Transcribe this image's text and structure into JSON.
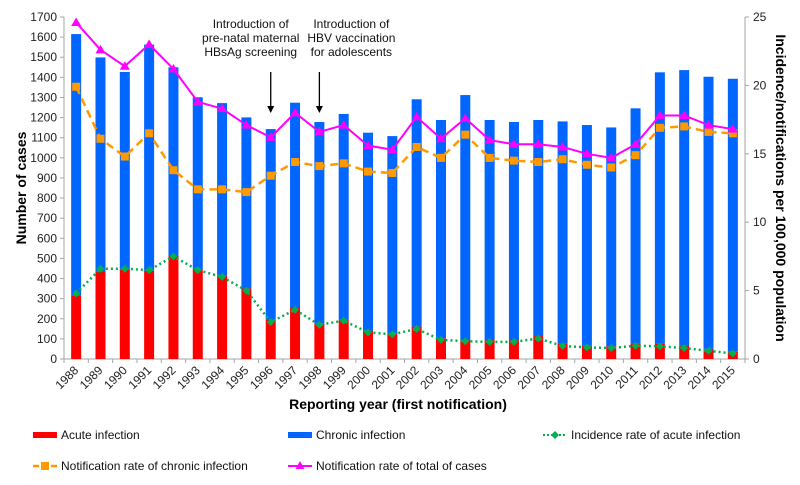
{
  "chart_data": {
    "type": "bar",
    "title": "",
    "xlabel": "Reporting year (first notification)",
    "ylabel": "Number of cases",
    "y2label": "Incidence/notifications per 100,000 population",
    "ylim": [
      0,
      1700
    ],
    "y2lim": [
      0,
      25
    ],
    "yticks": [
      0,
      100,
      200,
      300,
      400,
      500,
      600,
      700,
      800,
      900,
      1000,
      1100,
      1200,
      1300,
      1400,
      1500,
      1600,
      1700
    ],
    "y2ticks": [
      0,
      5,
      10,
      15,
      20,
      25
    ],
    "grid": false,
    "legend_position": "bottom",
    "categories": [
      "1988",
      "1989",
      "1990",
      "1991",
      "1992",
      "1993",
      "1994",
      "1995",
      "1996",
      "1997",
      "1998",
      "1999",
      "2000",
      "2001",
      "2002",
      "2003",
      "2004",
      "2005",
      "2006",
      "2007",
      "2008",
      "2009",
      "2010",
      "2011",
      "2012",
      "2013",
      "2014",
      "2015"
    ],
    "series": [
      {
        "name": "Acute infection",
        "kind": "stacked-bar",
        "axis": "left",
        "color": "#ff0000",
        "values": [
          315,
          437,
          446,
          439,
          512,
          447,
          416,
          351,
          194,
          256,
          177,
          197,
          141,
          128,
          161,
          103,
          94,
          94,
          94,
          114,
          75,
          66,
          63,
          75,
          75,
          68,
          51,
          36
        ]
      },
      {
        "name": "Chronic infection",
        "kind": "stacked-bar",
        "axis": "left",
        "color": "#0066ff",
        "values": [
          1300,
          1062,
          981,
          1124,
          938,
          854,
          856,
          850,
          949,
          1018,
          1001,
          1021,
          984,
          980,
          1130,
          1085,
          1218,
          1094,
          1084,
          1074,
          1106,
          1097,
          1088,
          1171,
          1350,
          1368,
          1352,
          1357
        ]
      },
      {
        "name": "Incidence rate of acute infection",
        "kind": "line-dotted",
        "axis": "right",
        "color": "#00b050",
        "marker": "diamond",
        "values": [
          4.8,
          6.6,
          6.6,
          6.5,
          7.5,
          6.5,
          6.0,
          5.0,
          2.7,
          3.6,
          2.5,
          2.8,
          1.95,
          1.8,
          2.2,
          1.4,
          1.3,
          1.25,
          1.25,
          1.5,
          0.95,
          0.85,
          0.8,
          0.97,
          0.93,
          0.8,
          0.6,
          0.4
        ]
      },
      {
        "name": "Notification rate of chronic infection",
        "kind": "line-dashed",
        "axis": "right",
        "color": "#ff9900",
        "marker": "square",
        "values": [
          19.9,
          16.1,
          14.8,
          16.5,
          13.8,
          12.4,
          12.4,
          12.2,
          13.4,
          14.4,
          14.1,
          14.3,
          13.7,
          13.6,
          15.5,
          14.7,
          16.4,
          14.7,
          14.5,
          14.4,
          14.6,
          14.2,
          14.0,
          14.9,
          16.9,
          17.0,
          16.6,
          16.5
        ]
      },
      {
        "name": "Notification rate of total of cases",
        "kind": "line-solid",
        "axis": "right",
        "color": "#ff00ff",
        "marker": "triangle",
        "values": [
          24.6,
          22.6,
          21.4,
          23.0,
          21.2,
          18.8,
          18.3,
          17.1,
          16.2,
          18.0,
          16.6,
          17.1,
          15.6,
          15.3,
          17.7,
          16.1,
          17.6,
          16.0,
          15.7,
          15.7,
          15.5,
          15.0,
          14.7,
          15.7,
          17.8,
          17.8,
          17.1,
          16.8
        ]
      }
    ],
    "annotations": [
      {
        "at": "1996",
        "lines": [
          "Introduction of",
          "pre-natal maternal",
          "HBsAg screening"
        ]
      },
      {
        "at": "1998",
        "lines": [
          "Introduction of",
          "HBV vaccination",
          "for adolescents"
        ]
      }
    ]
  },
  "legend": {
    "items": [
      {
        "label": "Acute infection",
        "symbol": "bar",
        "color": "#ff0000"
      },
      {
        "label": "Chronic infection",
        "symbol": "bar",
        "color": "#0066ff"
      },
      {
        "label": "Incidence rate of acute infection",
        "symbol": "dotted-diamond",
        "color": "#00b050"
      },
      {
        "label": "Notification rate of chronic infection",
        "symbol": "dashed-square",
        "color": "#ff9900"
      },
      {
        "label": "Notification rate of total of cases",
        "symbol": "solid-triangle",
        "color": "#ff00ff"
      }
    ]
  }
}
